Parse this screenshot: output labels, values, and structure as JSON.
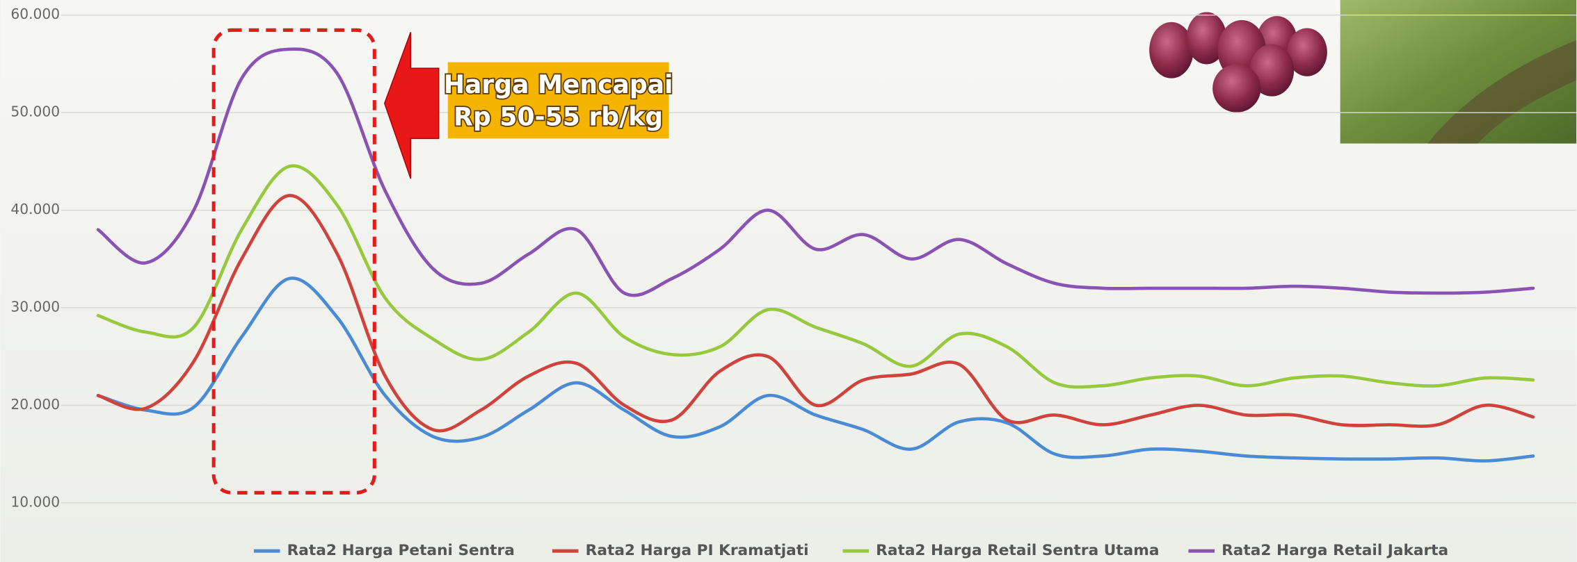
{
  "chart_data": {
    "type": "line",
    "annotation": [
      "Harga Mencapai",
      "Rp 50-55 rb/kg"
    ],
    "categories": [
      null,
      null,
      null,
      null,
      null,
      null,
      null,
      null,
      null,
      null,
      null,
      null,
      null,
      null,
      null,
      null,
      null,
      null,
      null,
      null,
      null,
      null,
      null,
      null,
      null,
      null,
      null,
      null,
      null,
      null,
      null
    ],
    "series": [
      {
        "name": "Rata2 Harga Petani Sentra",
        "color": "#4a8bd6",
        "values": [
          21000,
          19500,
          19800,
          27000,
          33000,
          29000,
          21000,
          16800,
          16700,
          19500,
          22300,
          19500,
          16800,
          17800,
          21000,
          19000,
          17500,
          15500,
          18300,
          18200,
          15000,
          14800,
          15500,
          15300,
          14800,
          14600,
          14500,
          14500,
          14600,
          14300,
          14800
        ]
      },
      {
        "name": "Rata2 Harga PI Kramatjati",
        "color": "#d0433c",
        "values": [
          21000,
          19700,
          24500,
          35000,
          41500,
          35500,
          23000,
          17500,
          19500,
          23000,
          24300,
          20000,
          18500,
          23500,
          25000,
          20000,
          22600,
          23200,
          24200,
          18500,
          19000,
          18000,
          19000,
          20000,
          19000,
          19000,
          18000,
          18000,
          18000,
          20000,
          18800
        ]
      },
      {
        "name": "Rata2 Harga Retail Sentra Utama",
        "color": "#96c93d",
        "values": [
          29200,
          27500,
          28000,
          38000,
          44500,
          40500,
          31000,
          26800,
          24700,
          27500,
          31500,
          27000,
          25200,
          26000,
          29800,
          28000,
          26300,
          24000,
          27300,
          26000,
          22300,
          22000,
          22800,
          23000,
          22000,
          22800,
          23000,
          22300,
          22000,
          22800,
          22600
        ]
      },
      {
        "name": "Rata2 Harga Retail Jakarta",
        "color": "#8a52b3",
        "values": [
          38000,
          34600,
          40000,
          53500,
          56500,
          54000,
          42000,
          34000,
          32500,
          35500,
          38000,
          31500,
          33000,
          36000,
          40000,
          36000,
          37500,
          35000,
          37000,
          34500,
          32500,
          32000,
          32000,
          32000,
          32000,
          32200,
          32000,
          31600,
          31500,
          31600,
          32000
        ]
      }
    ],
    "ylim": [
      7000,
      61000
    ],
    "yticks": [
      {
        "value": 10000,
        "label": "10.000"
      },
      {
        "value": 20000,
        "label": "20.000"
      },
      {
        "value": 30000,
        "label": "30.000"
      },
      {
        "value": 40000,
        "label": "40.000"
      },
      {
        "value": 50000,
        "label": "50.000"
      },
      {
        "value": 60000,
        "label": "60.000"
      }
    ],
    "grid": true
  }
}
